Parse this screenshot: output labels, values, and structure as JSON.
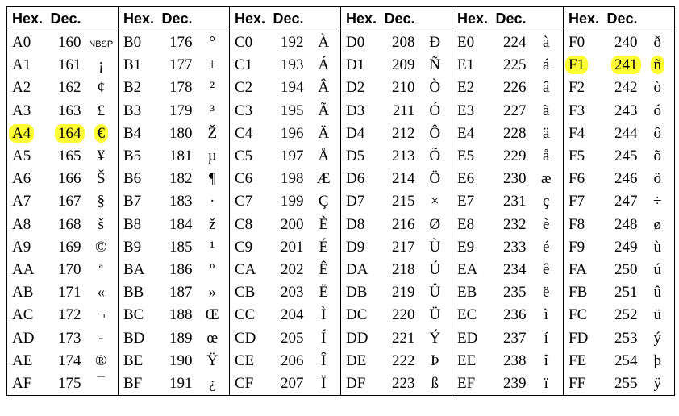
{
  "table": {
    "highlight_color": "#ffff33",
    "highlight": [
      {
        "group": 0,
        "row": 4
      },
      {
        "group": 5,
        "row": 1
      }
    ],
    "groups": [
      {
        "header": [
          "Hex.",
          "Dec."
        ],
        "rows": [
          [
            "A0",
            160,
            "NBSP"
          ],
          [
            "A1",
            161,
            "¡"
          ],
          [
            "A2",
            162,
            "¢"
          ],
          [
            "A3",
            163,
            "£"
          ],
          [
            "A4",
            164,
            "€"
          ],
          [
            "A5",
            165,
            "¥"
          ],
          [
            "A6",
            166,
            "Š"
          ],
          [
            "A7",
            167,
            "§"
          ],
          [
            "A8",
            168,
            "š"
          ],
          [
            "A9",
            169,
            "©"
          ],
          [
            "AA",
            170,
            "ª"
          ],
          [
            "AB",
            171,
            "«"
          ],
          [
            "AC",
            172,
            "¬"
          ],
          [
            "AD",
            173,
            "-"
          ],
          [
            "AE",
            174,
            "®"
          ],
          [
            "AF",
            175,
            "¯"
          ]
        ]
      },
      {
        "header": [
          "Hex.",
          "Dec."
        ],
        "rows": [
          [
            "B0",
            176,
            "°"
          ],
          [
            "B1",
            177,
            "±"
          ],
          [
            "B2",
            178,
            "²"
          ],
          [
            "B3",
            179,
            "³"
          ],
          [
            "B4",
            180,
            "Ž"
          ],
          [
            "B5",
            181,
            "µ"
          ],
          [
            "B6",
            182,
            "¶"
          ],
          [
            "B7",
            183,
            "·"
          ],
          [
            "B8",
            184,
            "ž"
          ],
          [
            "B9",
            185,
            "¹"
          ],
          [
            "BA",
            186,
            "º"
          ],
          [
            "BB",
            187,
            "»"
          ],
          [
            "BC",
            188,
            "Œ"
          ],
          [
            "BD",
            189,
            "œ"
          ],
          [
            "BE",
            190,
            "Ÿ"
          ],
          [
            "BF",
            191,
            "¿"
          ]
        ]
      },
      {
        "header": [
          "Hex.",
          "Dec."
        ],
        "rows": [
          [
            "C0",
            192,
            "À"
          ],
          [
            "C1",
            193,
            "Á"
          ],
          [
            "C2",
            194,
            "Â"
          ],
          [
            "C3",
            195,
            "Ã"
          ],
          [
            "C4",
            196,
            "Ä"
          ],
          [
            "C5",
            197,
            "Å"
          ],
          [
            "C6",
            198,
            "Æ"
          ],
          [
            "C7",
            199,
            "Ç"
          ],
          [
            "C8",
            200,
            "È"
          ],
          [
            "C9",
            201,
            "É"
          ],
          [
            "CA",
            202,
            "Ê"
          ],
          [
            "CB",
            203,
            "Ë"
          ],
          [
            "CC",
            204,
            "Ì"
          ],
          [
            "CD",
            205,
            "Í"
          ],
          [
            "CE",
            206,
            "Î"
          ],
          [
            "CF",
            207,
            "Ï"
          ]
        ]
      },
      {
        "header": [
          "Hex.",
          "Dec."
        ],
        "rows": [
          [
            "D0",
            208,
            "Ð"
          ],
          [
            "D1",
            209,
            "Ñ"
          ],
          [
            "D2",
            210,
            "Ò"
          ],
          [
            "D3",
            211,
            "Ó"
          ],
          [
            "D4",
            212,
            "Ô"
          ],
          [
            "D5",
            213,
            "Õ"
          ],
          [
            "D6",
            214,
            "Ö"
          ],
          [
            "D7",
            215,
            "×"
          ],
          [
            "D8",
            216,
            "Ø"
          ],
          [
            "D9",
            217,
            "Ù"
          ],
          [
            "DA",
            218,
            "Ú"
          ],
          [
            "DB",
            219,
            "Û"
          ],
          [
            "DC",
            220,
            "Ü"
          ],
          [
            "DD",
            221,
            "Ý"
          ],
          [
            "DE",
            222,
            "Þ"
          ],
          [
            "DF",
            223,
            "ß"
          ]
        ]
      },
      {
        "header": [
          "Hex.",
          "Dec."
        ],
        "rows": [
          [
            "E0",
            224,
            "à"
          ],
          [
            "E1",
            225,
            "á"
          ],
          [
            "E2",
            226,
            "â"
          ],
          [
            "E3",
            227,
            "ã"
          ],
          [
            "E4",
            228,
            "ä"
          ],
          [
            "E5",
            229,
            "å"
          ],
          [
            "E6",
            230,
            "æ"
          ],
          [
            "E7",
            231,
            "ç"
          ],
          [
            "E8",
            232,
            "è"
          ],
          [
            "E9",
            233,
            "é"
          ],
          [
            "EA",
            234,
            "ê"
          ],
          [
            "EB",
            235,
            "ë"
          ],
          [
            "EC",
            236,
            "ì"
          ],
          [
            "ED",
            237,
            "í"
          ],
          [
            "EE",
            238,
            "î"
          ],
          [
            "EF",
            239,
            "ï"
          ]
        ]
      },
      {
        "header": [
          "Hex.",
          "Dec."
        ],
        "rows": [
          [
            "F0",
            240,
            "ð"
          ],
          [
            "F1",
            241,
            "ñ"
          ],
          [
            "F2",
            242,
            "ò"
          ],
          [
            "F3",
            243,
            "ó"
          ],
          [
            "F4",
            244,
            "ô"
          ],
          [
            "F5",
            245,
            "õ"
          ],
          [
            "F6",
            246,
            "ö"
          ],
          [
            "F7",
            247,
            "÷"
          ],
          [
            "F8",
            248,
            "ø"
          ],
          [
            "F9",
            249,
            "ù"
          ],
          [
            "FA",
            250,
            "ú"
          ],
          [
            "FB",
            251,
            "û"
          ],
          [
            "FC",
            252,
            "ü"
          ],
          [
            "FD",
            253,
            "ý"
          ],
          [
            "FE",
            254,
            "þ"
          ],
          [
            "FF",
            255,
            "ÿ"
          ]
        ]
      }
    ]
  }
}
